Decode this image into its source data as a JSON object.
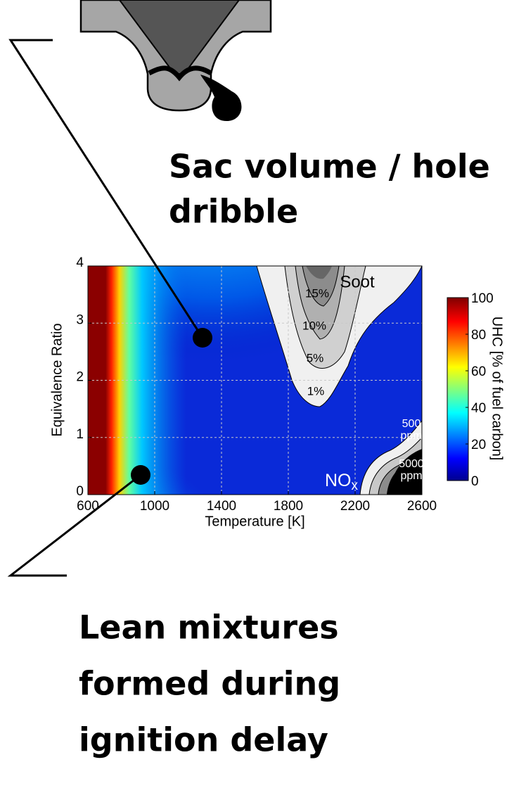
{
  "callouts": [
    {
      "lines": [
        "Sac volume / hole",
        "dribble"
      ]
    },
    {
      "lines": [
        "Lean mixtures",
        "formed during",
        "ignition delay"
      ]
    }
  ],
  "plot": {
    "x_label": "Temperature [K]",
    "y_label": "Equivalence Ratio",
    "xlim": [
      600,
      2600
    ],
    "ylim": [
      0,
      4
    ],
    "xticks": [
      600,
      1000,
      1400,
      1800,
      2200,
      2600
    ],
    "yticks": [
      0,
      1,
      2,
      3,
      4
    ],
    "colorbar": {
      "label": "UHC [% of fuel carbon]",
      "lim": [
        0,
        100
      ],
      "ticks": [
        0,
        20,
        40,
        60,
        80,
        100
      ]
    },
    "soot": {
      "label": "Soot",
      "levels": [
        "15%",
        "10%",
        "5%",
        "1%"
      ]
    },
    "nox": {
      "label": "NO",
      "subscript": "x",
      "levels": [
        [
          "500",
          "ppm"
        ],
        [
          "5000",
          "ppm"
        ]
      ]
    }
  }
}
